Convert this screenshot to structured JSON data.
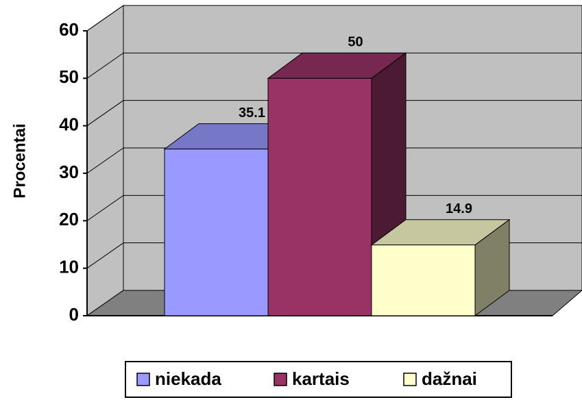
{
  "chart_data": {
    "type": "bar3d",
    "y_label": "Procentai",
    "series": [
      {
        "name": "niekada",
        "color": "#9999FF",
        "values": [
          35.1
        ]
      },
      {
        "name": "kartais",
        "color": "#993366",
        "values": [
          50
        ]
      },
      {
        "name": "dažnai",
        "color": "#FFFFCC",
        "values": [
          14.9
        ]
      }
    ],
    "ylim": [
      0,
      60
    ],
    "yticks": [
      0,
      10,
      20,
      30,
      40,
      50,
      60
    ],
    "grid": true,
    "legend": "bottom"
  }
}
